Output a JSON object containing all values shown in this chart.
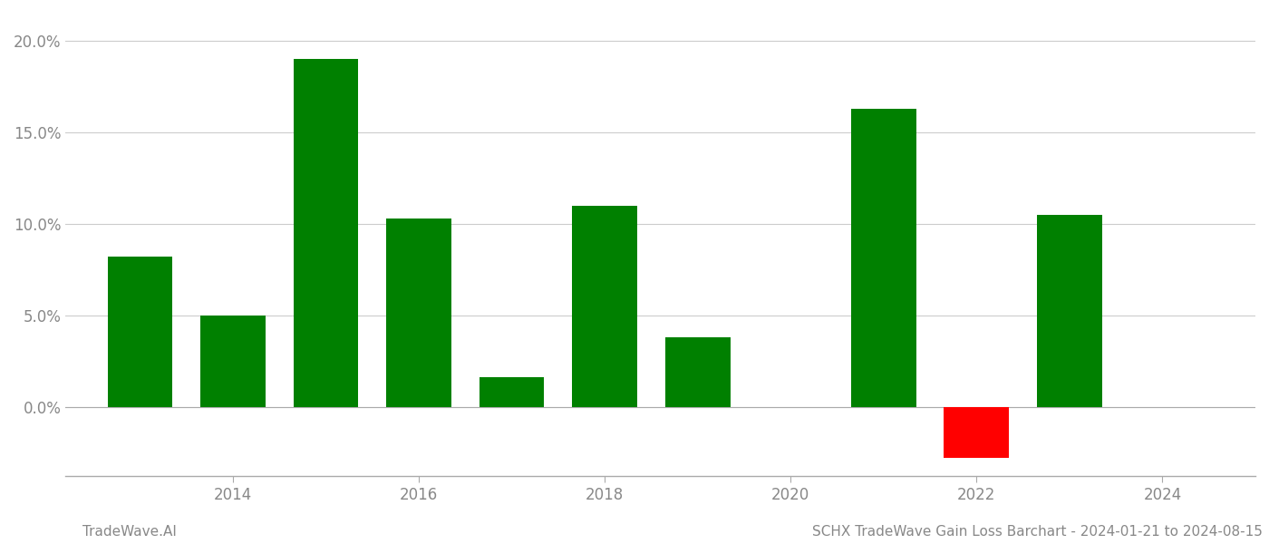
{
  "years": [
    2013,
    2014,
    2015,
    2016,
    2017,
    2018,
    2019,
    2021,
    2022,
    2023
  ],
  "values": [
    0.082,
    0.05,
    0.19,
    0.103,
    0.016,
    0.11,
    0.038,
    0.163,
    -0.028,
    0.105
  ],
  "bar_colors": [
    "#008000",
    "#008000",
    "#008000",
    "#008000",
    "#008000",
    "#008000",
    "#008000",
    "#008000",
    "#ff0000",
    "#008000"
  ],
  "xlim_min": 2012.2,
  "xlim_max": 2025.0,
  "xticks": [
    2014,
    2016,
    2018,
    2020,
    2022,
    2024
  ],
  "xtick_labels": [
    "2014",
    "2016",
    "2018",
    "2020",
    "2022",
    "2024"
  ],
  "ylim_min": -0.038,
  "ylim_max": 0.215,
  "yticks": [
    0.0,
    0.05,
    0.1,
    0.15,
    0.2
  ],
  "ytick_labels": [
    "0.0%",
    "5.0%",
    "10.0%",
    "15.0%",
    "20.0%"
  ],
  "bar_width": 0.7,
  "background_color": "#ffffff",
  "grid_color": "#cccccc",
  "text_color": "#888888",
  "footer_left": "TradeWave.AI",
  "footer_right": "SCHX TradeWave Gain Loss Barchart - 2024-01-21 to 2024-08-15",
  "footer_fontsize": 11,
  "tick_fontsize": 12
}
